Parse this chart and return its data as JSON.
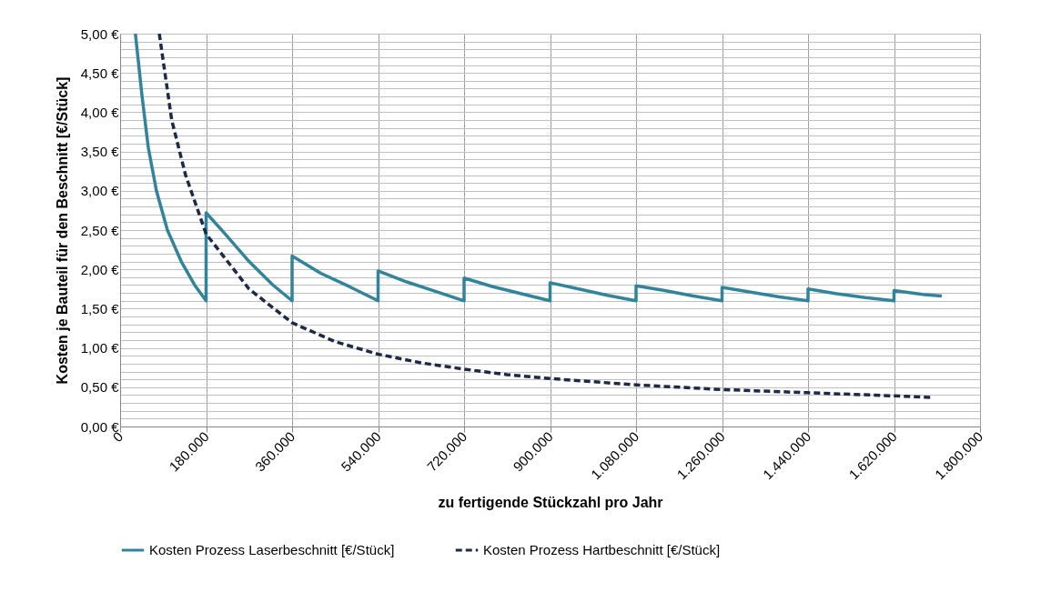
{
  "chart_data": {
    "type": "line",
    "xlabel": "zu fertigende  Stückzahl pro Jahr",
    "ylabel": "Kosten je Bauteil für den Beschnitt [€/Stück]",
    "xlim": [
      0,
      1800000
    ],
    "xticks": [
      {
        "value": 0,
        "label": "0"
      },
      {
        "value": 180000,
        "label": "180.000"
      },
      {
        "value": 360000,
        "label": "360.000"
      },
      {
        "value": 540000,
        "label": "540.000"
      },
      {
        "value": 720000,
        "label": "720.000"
      },
      {
        "value": 900000,
        "label": "900.000"
      },
      {
        "value": 1080000,
        "label": "1.080.000"
      },
      {
        "value": 1260000,
        "label": "1.260.000"
      },
      {
        "value": 1440000,
        "label": "1.440.000"
      },
      {
        "value": 1620000,
        "label": "1.620.000"
      },
      {
        "value": 1800000,
        "label": "1.800.000"
      }
    ],
    "ylim": [
      0,
      5
    ],
    "yticks": [
      {
        "value": 0,
        "label": "0,00 €"
      },
      {
        "value": 0.1,
        "label": null
      },
      {
        "value": 0.2,
        "label": null
      },
      {
        "value": 0.3,
        "label": null
      },
      {
        "value": 0.4,
        "label": null
      },
      {
        "value": 0.5,
        "label": "0,50 €"
      },
      {
        "value": 0.6,
        "label": null
      },
      {
        "value": 0.7,
        "label": null
      },
      {
        "value": 0.8,
        "label": null
      },
      {
        "value": 0.9,
        "label": null
      },
      {
        "value": 1,
        "label": "1,00 €"
      },
      {
        "value": 1.1,
        "label": null
      },
      {
        "value": 1.2,
        "label": null
      },
      {
        "value": 1.3,
        "label": null
      },
      {
        "value": 1.4,
        "label": null
      },
      {
        "value": 1.5,
        "label": "1,50 €"
      },
      {
        "value": 1.6,
        "label": null
      },
      {
        "value": 1.7,
        "label": null
      },
      {
        "value": 1.8,
        "label": null
      },
      {
        "value": 1.9,
        "label": null
      },
      {
        "value": 2,
        "label": "2,00 €"
      },
      {
        "value": 2.1,
        "label": null
      },
      {
        "value": 2.2,
        "label": null
      },
      {
        "value": 2.3,
        "label": null
      },
      {
        "value": 2.4,
        "label": null
      },
      {
        "value": 2.5,
        "label": "2,50 €"
      },
      {
        "value": 2.6,
        "label": null
      },
      {
        "value": 2.7,
        "label": null
      },
      {
        "value": 2.8,
        "label": null
      },
      {
        "value": 2.9,
        "label": null
      },
      {
        "value": 3,
        "label": "3,00 €"
      },
      {
        "value": 3.1,
        "label": null
      },
      {
        "value": 3.2,
        "label": null
      },
      {
        "value": 3.3,
        "label": null
      },
      {
        "value": 3.4,
        "label": null
      },
      {
        "value": 3.5,
        "label": "3,50 €"
      },
      {
        "value": 3.6,
        "label": null
      },
      {
        "value": 3.7,
        "label": null
      },
      {
        "value": 3.8,
        "label": null
      },
      {
        "value": 3.9,
        "label": null
      },
      {
        "value": 4,
        "label": "4,00 €"
      },
      {
        "value": 4.1,
        "label": null
      },
      {
        "value": 4.2,
        "label": null
      },
      {
        "value": 4.3,
        "label": null
      },
      {
        "value": 4.4,
        "label": null
      },
      {
        "value": 4.5,
        "label": "4,50 €"
      },
      {
        "value": 4.6,
        "label": null
      },
      {
        "value": 4.7,
        "label": null
      },
      {
        "value": 4.8,
        "label": null
      },
      {
        "value": 4.9,
        "label": null
      },
      {
        "value": 5,
        "label": "5,00 €"
      }
    ],
    "grid": true,
    "legend": "bottom",
    "marker": "none",
    "series": [
      {
        "name": "Kosten Prozess Laserbeschnitt [€/Stück]",
        "color": "#31849b",
        "line_style": "solid",
        "x": [
          32000,
          46000,
          59000,
          76000,
          99000,
          128000,
          156000,
          180000,
          180000,
          220000,
          270000,
          320000,
          360000,
          360000,
          420000,
          480000,
          540000,
          540000,
          600000,
          660000,
          720000,
          720000,
          780000,
          840000,
          900000,
          900000,
          960000,
          1020000,
          1080000,
          1080000,
          1140000,
          1200000,
          1260000,
          1260000,
          1320000,
          1380000,
          1440000,
          1440000,
          1500000,
          1560000,
          1620000,
          1620000,
          1680000,
          1720000
        ],
        "values": [
          5.0,
          4.2,
          3.55,
          3.0,
          2.5,
          2.1,
          1.8,
          1.6,
          2.72,
          2.45,
          2.1,
          1.8,
          1.6,
          2.17,
          1.95,
          1.78,
          1.6,
          1.98,
          1.84,
          1.72,
          1.6,
          1.89,
          1.78,
          1.69,
          1.6,
          1.83,
          1.75,
          1.67,
          1.6,
          1.79,
          1.73,
          1.66,
          1.6,
          1.77,
          1.71,
          1.65,
          1.6,
          1.75,
          1.69,
          1.64,
          1.6,
          1.73,
          1.68,
          1.66
        ]
      },
      {
        "name": "Kosten Prozess Hartbeschnitt [€/Stück]",
        "color": "#1c2a48",
        "line_style": "dashed",
        "x": [
          82000,
          108000,
          137000,
          180000,
          270000,
          360000,
          450000,
          540000,
          630000,
          720000,
          810000,
          900000,
          1080000,
          1260000,
          1440000,
          1620000,
          1700000
        ],
        "values": [
          5.0,
          3.9,
          3.2,
          2.45,
          1.75,
          1.32,
          1.08,
          0.92,
          0.81,
          0.73,
          0.66,
          0.61,
          0.53,
          0.47,
          0.43,
          0.39,
          0.37
        ]
      }
    ]
  }
}
